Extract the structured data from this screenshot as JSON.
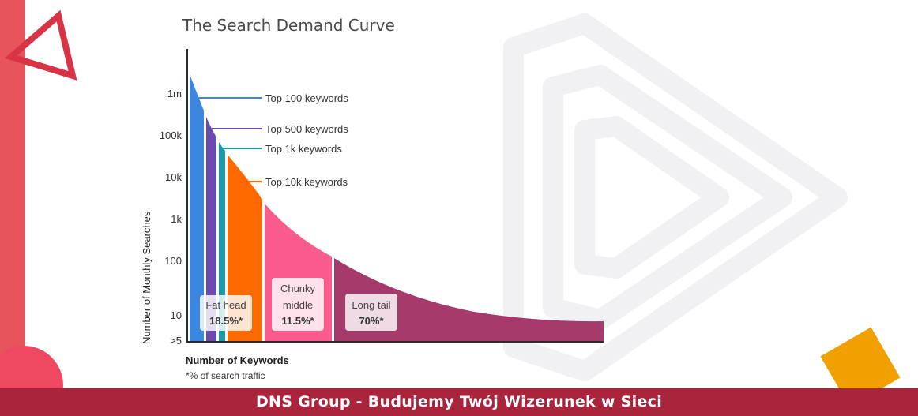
{
  "chart_data": {
    "type": "area",
    "title": "The Search Demand Curve",
    "ylabel": "Number of Monthly Searches",
    "xlabel": "Number of Keywords",
    "footnote": "*% of search traffic",
    "y_scale": "log",
    "y_ticks": [
      ">5",
      "10",
      "100",
      "1k",
      "10k",
      "100k",
      "1m"
    ],
    "colors": {
      "top100": "#3b86e0",
      "top500": "#6a4bad",
      "top1k": "#1a9aa6",
      "top10k": "#ff6a00",
      "chunky": "#f95b8c",
      "longtail": "#a63a6a"
    },
    "callouts": [
      {
        "label": "Top 100 keywords",
        "color": "#3b86e0"
      },
      {
        "label": "Top 500 keywords",
        "color": "#6a4bad"
      },
      {
        "label": "Top 1k keywords",
        "color": "#1a9aa6"
      },
      {
        "label": "Top 10k keywords",
        "color": "#ff6a00"
      }
    ],
    "segments": [
      {
        "line1": "Fat head",
        "line2": "18.5%*",
        "share_pct": 18.5
      },
      {
        "line1": "Chunky",
        "line1b": "middle",
        "line2": "11.5%*",
        "share_pct": 11.5
      },
      {
        "line1": "Long tail",
        "line2": "70%*",
        "share_pct": 70
      }
    ]
  },
  "footer": {
    "text": "DNS Group - Budujemy Twój Wizerunek w Sieci",
    "color": "#a8253c"
  },
  "decor": {
    "left_bar_color": "#e8545b",
    "triangle_color": "#e03a4a",
    "circle_color": "#ee4960",
    "square_color": "#f0a000"
  }
}
